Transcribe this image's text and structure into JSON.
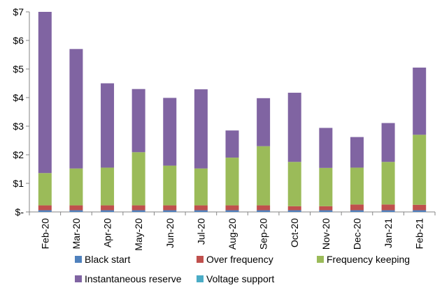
{
  "chart_data": {
    "type": "bar",
    "stacked": true,
    "categories": [
      "Feb-20",
      "Mar-20",
      "Apr-20",
      "May-20",
      "Jun-20",
      "Jul-20",
      "Aug-20",
      "Sep-20",
      "Oct-20",
      "Nov-20",
      "Dec-20",
      "Jan-21",
      "Feb-21"
    ],
    "series": [
      {
        "name": "Black start",
        "color": "#4F81BD",
        "values": [
          0.06,
          0.06,
          0.06,
          0.06,
          0.06,
          0.06,
          0.06,
          0.06,
          0.06,
          0.06,
          0.06,
          0.06,
          0.06
        ]
      },
      {
        "name": "Over frequency",
        "color": "#C0504D",
        "values": [
          0.17,
          0.17,
          0.17,
          0.17,
          0.17,
          0.17,
          0.17,
          0.17,
          0.14,
          0.14,
          0.2,
          0.2,
          0.19
        ]
      },
      {
        "name": "Frequency keeping",
        "color": "#9BBB59",
        "values": [
          1.13,
          1.29,
          1.32,
          1.86,
          1.39,
          1.29,
          1.67,
          2.07,
          1.55,
          1.34,
          1.29,
          1.49,
          2.45
        ]
      },
      {
        "name": "Instantaneous reserve",
        "color": "#8064A2",
        "values": [
          5.64,
          4.18,
          2.95,
          2.21,
          2.37,
          2.77,
          0.95,
          1.68,
          2.42,
          1.4,
          1.07,
          1.36,
          2.35
        ]
      },
      {
        "name": "Voltage support",
        "color": "#4BACC6",
        "values": [
          0,
          0,
          0,
          0,
          0,
          0,
          0,
          0,
          0,
          0,
          0,
          0,
          0
        ]
      }
    ],
    "title": "",
    "xlabel": "",
    "ylabel": "",
    "ylim": [
      0,
      7
    ],
    "yticks": [
      "$-",
      "$1",
      "$2",
      "$3",
      "$4",
      "$5",
      "$6",
      "$7"
    ],
    "grid": false,
    "legend_position": "bottom",
    "legend_rows": [
      [
        "Black start",
        "Over frequency",
        "Frequency keeping"
      ],
      [
        "Instantaneous reserve",
        "Voltage support"
      ]
    ]
  }
}
